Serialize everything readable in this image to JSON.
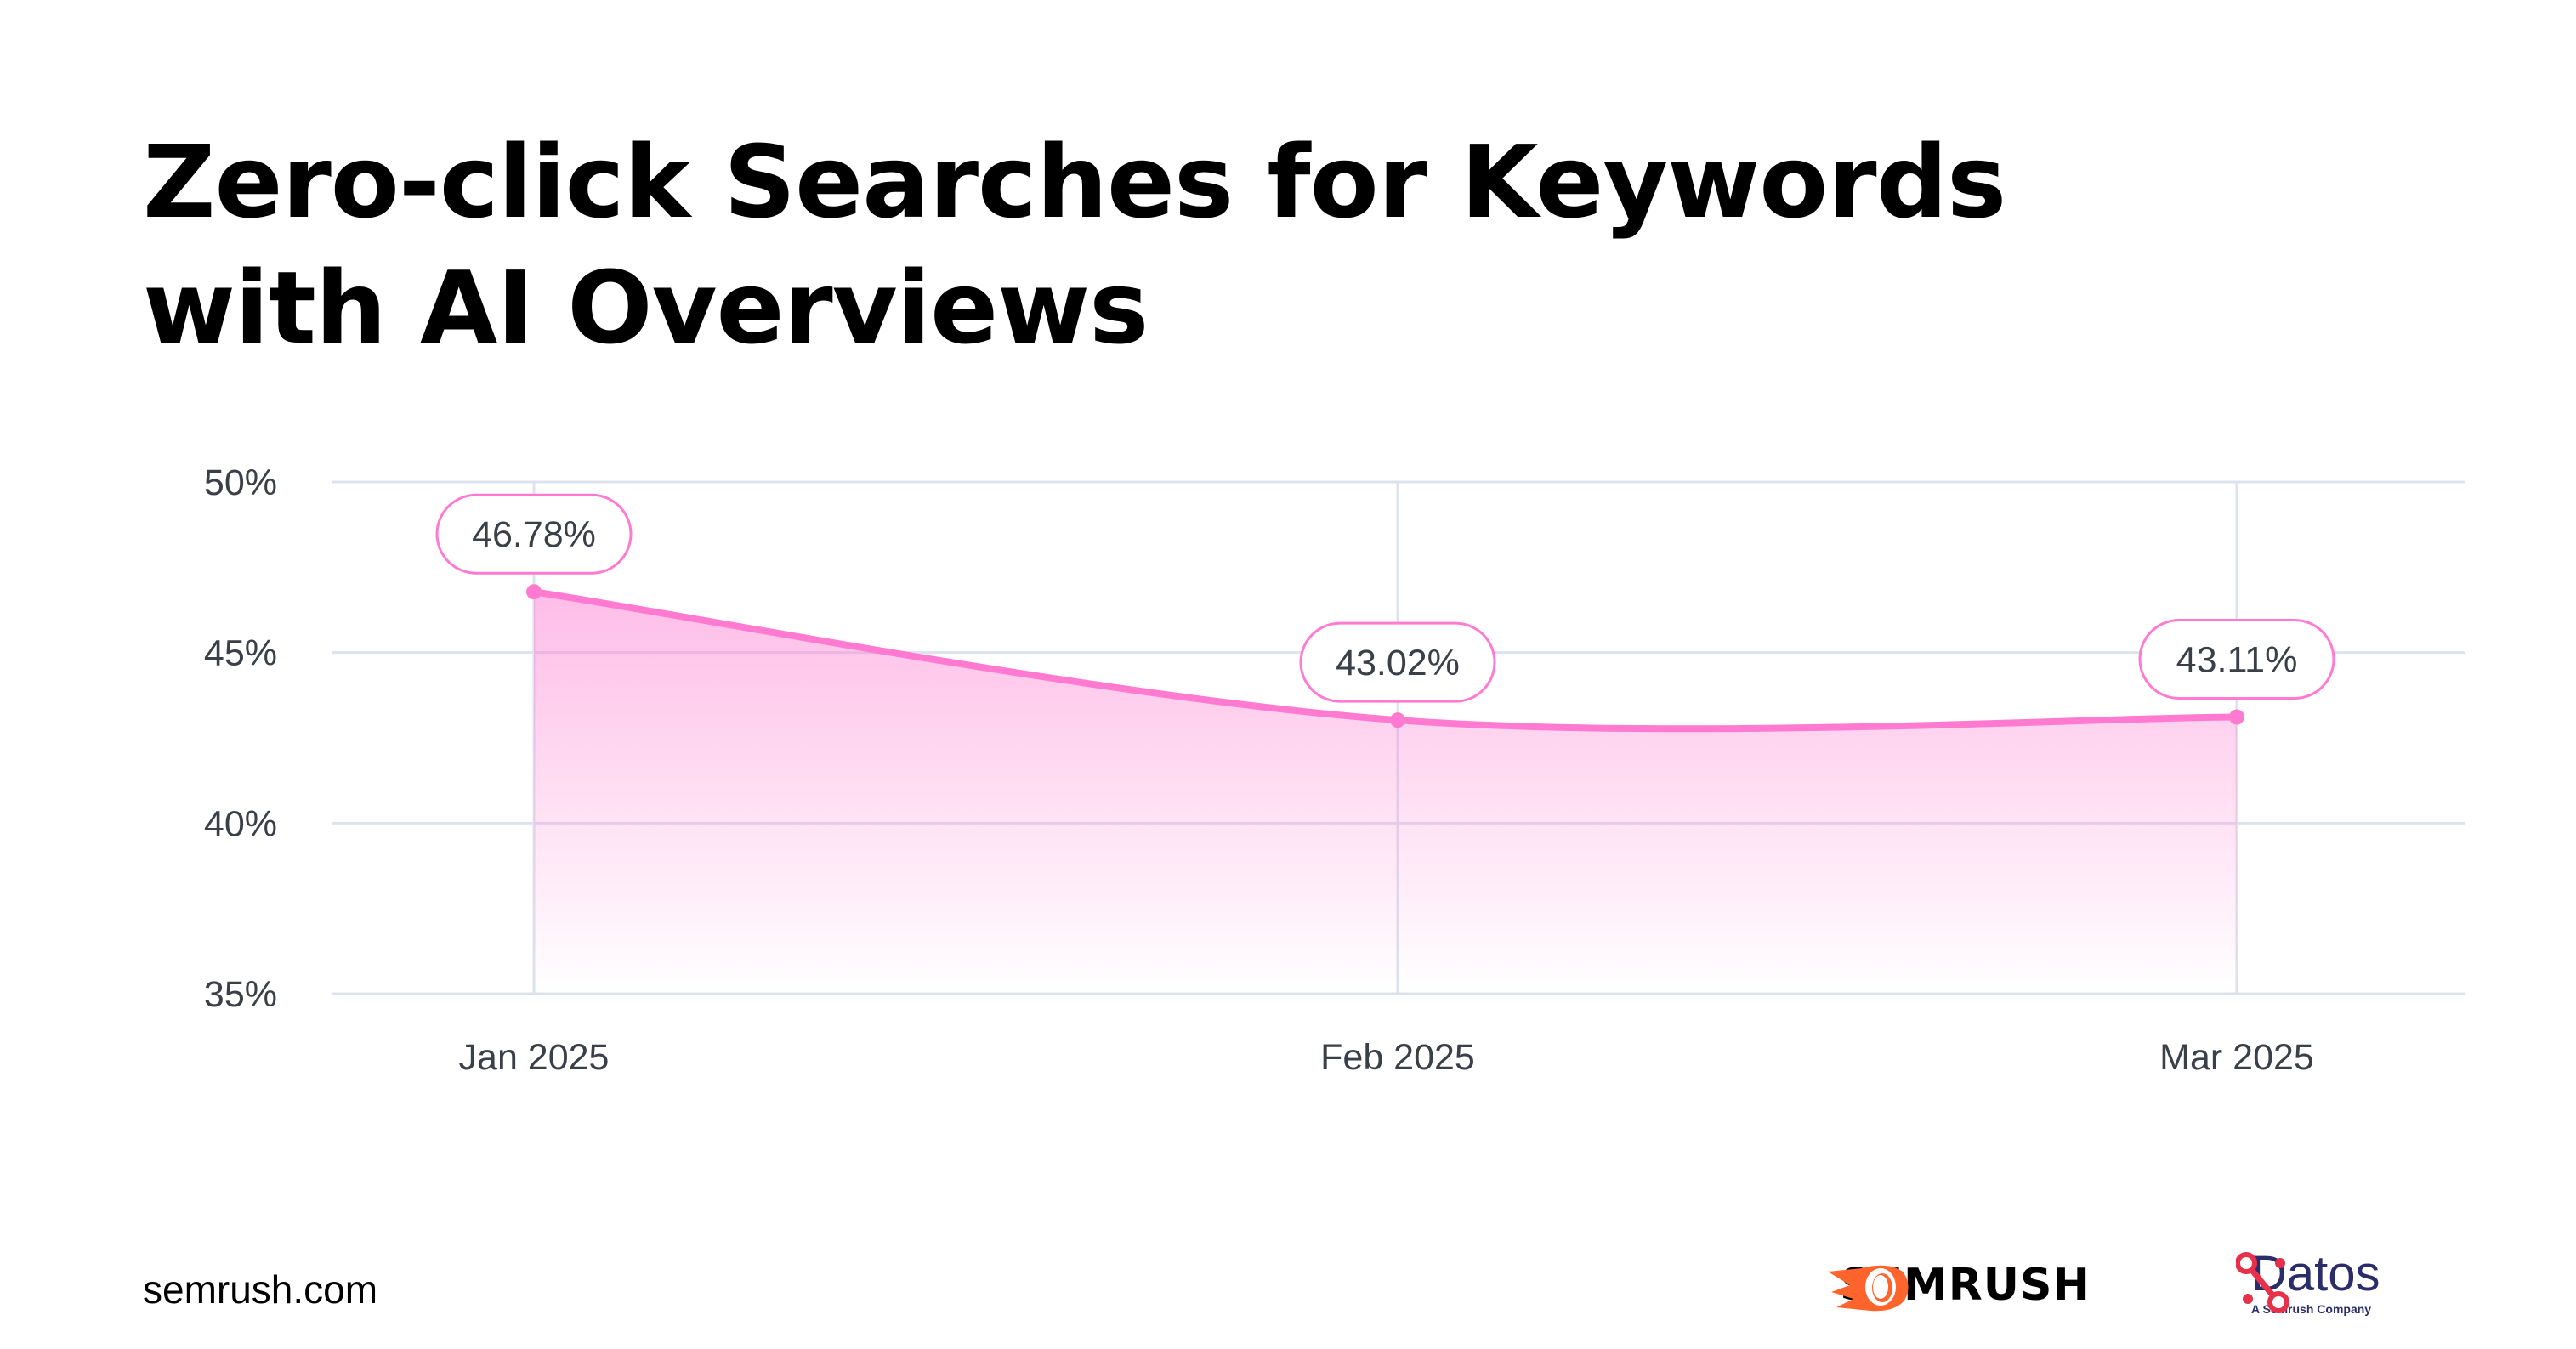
{
  "title_line1": "Zero-click Searches for Keywords",
  "title_line2": "with AI Overviews",
  "footer": {
    "site": "semrush.com",
    "semrush_logo": "SEMRUSH",
    "datos_logo": "Datos",
    "datos_sub": "A Semrush Company"
  },
  "colors": {
    "line": "#ff7ad0",
    "grid": "#dde3ee",
    "semrush_orange": "#ff642d",
    "datos_red": "#e8304a",
    "datos_navy": "#2b2d6b"
  },
  "chart_data": {
    "type": "area",
    "title": "Zero-click Searches for Keywords with AI Overviews",
    "categories": [
      "Jan 2025",
      "Feb 2025",
      "Mar 2025"
    ],
    "values": [
      46.78,
      43.02,
      43.11
    ],
    "data_labels": [
      "46.78%",
      "43.02%",
      "43.11%"
    ],
    "yticks": [
      "50%",
      "45%",
      "40%",
      "35%"
    ],
    "ytick_values": [
      50,
      45,
      40,
      35
    ],
    "ylim": [
      35,
      50
    ],
    "xlabel": "",
    "ylabel": "",
    "grid": true,
    "legend": "none"
  }
}
